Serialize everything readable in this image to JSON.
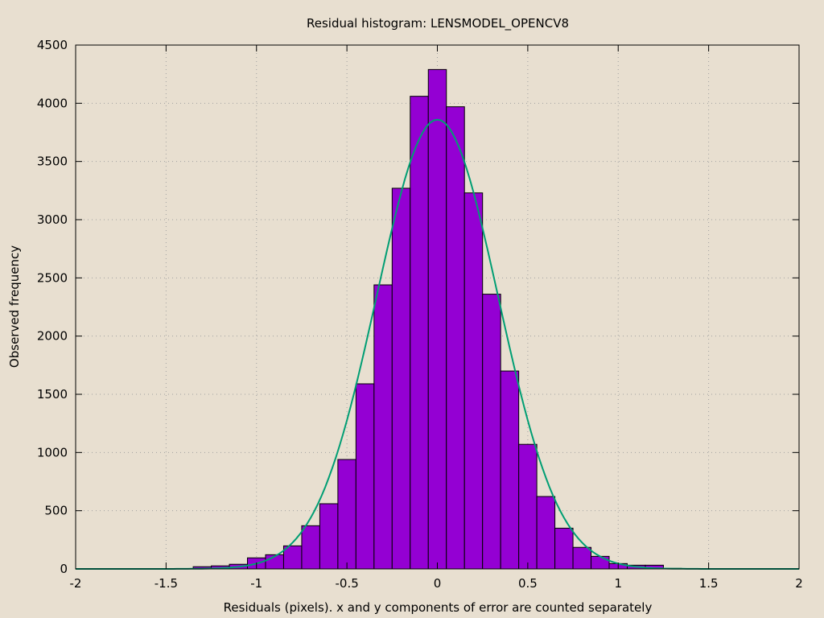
{
  "chart_data": {
    "type": "bar",
    "title": "Residual histogram: LENSMODEL_OPENCV8",
    "xlabel": "Residuals (pixels). x and y components of error are counted separately",
    "ylabel": "Observed frequency",
    "xlim": [
      -2,
      2
    ],
    "ylim": [
      0,
      4500
    ],
    "xticks": [
      -2,
      -1.5,
      -1,
      -0.5,
      0,
      0.5,
      1,
      1.5,
      2
    ],
    "xtick_labels": [
      "-2",
      "-1.5",
      "-1",
      "-0.5",
      "0",
      "0.5",
      "1",
      "1.5",
      "2"
    ],
    "yticks": [
      0,
      500,
      1000,
      1500,
      2000,
      2500,
      3000,
      3500,
      4000,
      4500
    ],
    "ytick_labels": [
      "0",
      "500",
      "1000",
      "1500",
      "2000",
      "2500",
      "3000",
      "3500",
      "4000",
      "4500"
    ],
    "grid": true,
    "bin_width": 0.1,
    "bins": [
      {
        "x": -1.3,
        "count": 19
      },
      {
        "x": -1.2,
        "count": 26
      },
      {
        "x": -1.1,
        "count": 40
      },
      {
        "x": -1.0,
        "count": 95
      },
      {
        "x": -0.9,
        "count": 122
      },
      {
        "x": -0.8,
        "count": 198
      },
      {
        "x": -0.7,
        "count": 371
      },
      {
        "x": -0.6,
        "count": 560
      },
      {
        "x": -0.5,
        "count": 940
      },
      {
        "x": -0.4,
        "count": 1590
      },
      {
        "x": -0.3,
        "count": 2440
      },
      {
        "x": -0.2,
        "count": 3270
      },
      {
        "x": -0.1,
        "count": 4060
      },
      {
        "x": 0.0,
        "count": 4290
      },
      {
        "x": 0.1,
        "count": 3970
      },
      {
        "x": 0.2,
        "count": 3230
      },
      {
        "x": 0.3,
        "count": 2360
      },
      {
        "x": 0.4,
        "count": 1700
      },
      {
        "x": 0.5,
        "count": 1070
      },
      {
        "x": 0.6,
        "count": 622
      },
      {
        "x": 0.7,
        "count": 350
      },
      {
        "x": 0.8,
        "count": 185
      },
      {
        "x": 0.9,
        "count": 108
      },
      {
        "x": 1.0,
        "count": 46
      },
      {
        "x": 1.1,
        "count": 32
      },
      {
        "x": 1.2,
        "count": 32
      },
      {
        "x": 1.3,
        "count": 5
      }
    ],
    "fit_curve": {
      "type": "gaussian",
      "mean": 0.0,
      "sigma": 0.336,
      "peak": 3860
    },
    "colors": {
      "background": "#e8dfd0",
      "bars": "#9400d3",
      "curve": "#009e73",
      "grid": "#a0a0a0"
    }
  }
}
